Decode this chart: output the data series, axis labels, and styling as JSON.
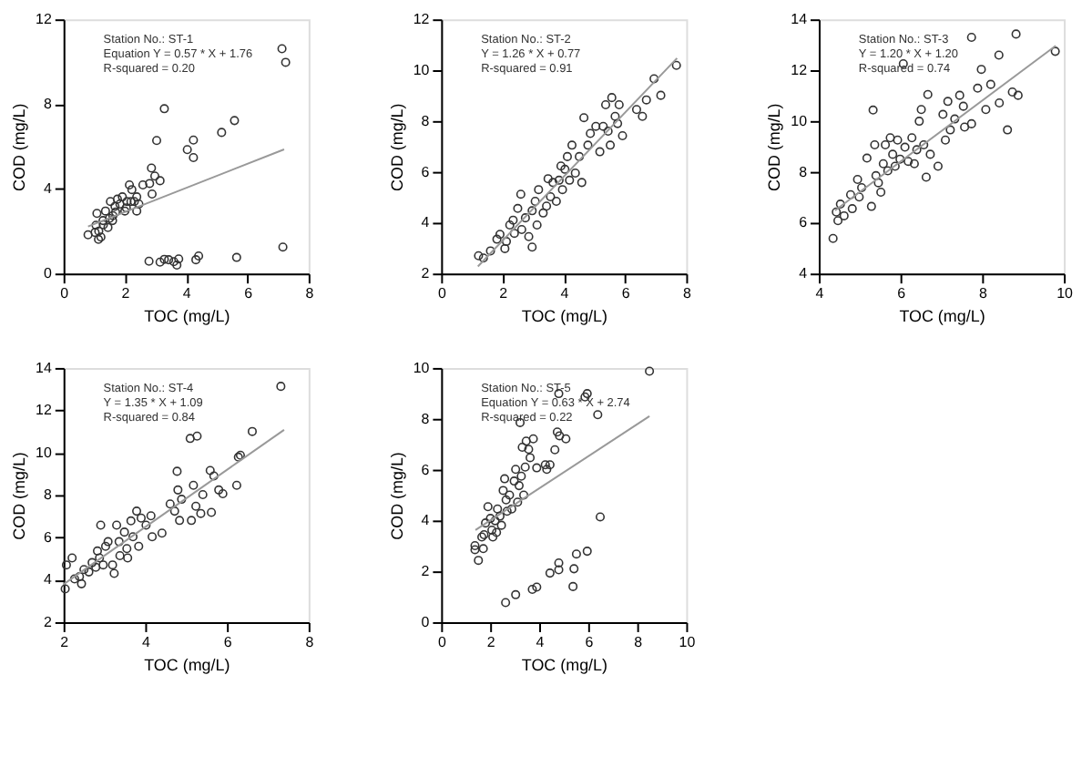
{
  "chart_data": [
    {
      "type": "scatter",
      "xlabel": "TOC (mg/L)",
      "ylabel": "COD (mg/L)",
      "xlim": [
        0,
        8
      ],
      "xticks": [
        0,
        2,
        4,
        6,
        8
      ],
      "ylim": [
        0,
        12
      ],
      "yticks": [
        0,
        4,
        8,
        12
      ],
      "grid": false,
      "annotations": [
        "Station No.: ST-1",
        "Equation Y = 0.57 * X + 1.76",
        "R-squared = 0.20"
      ],
      "series": [
        {
          "marker": "circle",
          "color": "#333333",
          "x": [
            0.8,
            1.03,
            1.06,
            1.14,
            1.22,
            1.09,
            1.29,
            1.37,
            1.45,
            1.53,
            1.61,
            1.68,
            1.76,
            1.84,
            1.92,
            2.0,
            2.07,
            2.15,
            2.23,
            2.31,
            2.39,
            2.46,
            2.39,
            2.59,
            2.81,
            2.87,
            2.89,
            2.98,
            3.04,
            3.15,
            3.29,
            2.79,
            3.15,
            3.29,
            3.43,
            3.6,
            3.7,
            3.76,
            4.04,
            4.24,
            4.24,
            4.32,
            4.41,
            5.16,
            5.58,
            5.65,
            7.13,
            7.25,
            7.16,
            1.15,
            1.3,
            1.5,
            1.7,
            2.05,
            2.2,
            1.6
          ],
          "values": [
            1.83,
            1.94,
            2.28,
            1.61,
            1.72,
            2.84,
            2.5,
            2.95,
            2.17,
            3.4,
            2.73,
            3.17,
            3.51,
            3.28,
            3.62,
            2.95,
            3.4,
            4.18,
            3.96,
            3.4,
            3.62,
            3.28,
            2.95,
            4.18,
            4.25,
            4.98,
            3.75,
            4.6,
            6.28,
            4.38,
            7.78,
            0.58,
            0.54,
            0.67,
            0.65,
            0.56,
            0.4,
            0.69,
            5.85,
            6.3,
            5.47,
            0.65,
            0.83,
            6.66,
            7.22,
            0.76,
            10.61,
            9.97,
            1.25,
            2.0,
            2.3,
            2.6,
            2.9,
            3.1,
            3.4,
            2.5
          ]
        },
        {
          "type": "line",
          "color": "#999999",
          "x": [
            0.8,
            7.2
          ],
          "values": [
            2.22,
            5.86
          ]
        }
      ]
    },
    {
      "type": "scatter",
      "xlabel": "TOC (mg/L)",
      "ylabel": "COD (mg/L)",
      "xlim": [
        0,
        8
      ],
      "xticks": [
        0,
        2,
        4,
        6,
        8
      ],
      "ylim": [
        2,
        12
      ],
      "yticks": [
        2,
        4,
        6,
        8,
        10,
        12
      ],
      "grid": false,
      "annotations": [
        "Station No.: ST-2",
        "Y = 1.26 * X + 0.77",
        "R-squared = 0.91"
      ],
      "series": [
        {
          "marker": "circle",
          "color": "#333333",
          "x": [
            1.22,
            1.38,
            1.61,
            1.82,
            1.92,
            2.08,
            2.13,
            2.24,
            2.35,
            2.39,
            2.5,
            2.6,
            2.63,
            2.75,
            2.86,
            2.97,
            2.97,
            3.07,
            3.13,
            3.18,
            3.33,
            3.44,
            3.49,
            3.57,
            3.65,
            3.76,
            3.85,
            3.91,
            3.96,
            4.04,
            4.12,
            4.19,
            4.27,
            4.38,
            4.51,
            4.59,
            4.66,
            4.79,
            4.87,
            5.05,
            5.18,
            5.29,
            5.37,
            5.45,
            5.52,
            5.57,
            5.68,
            5.76,
            5.81,
            5.92,
            6.38,
            6.57,
            6.7,
            6.95,
            7.17,
            7.68
          ],
          "values": [
            2.7,
            2.61,
            2.89,
            3.35,
            3.54,
            2.98,
            3.26,
            3.91,
            4.1,
            3.58,
            4.56,
            5.12,
            3.73,
            4.19,
            3.45,
            3.04,
            4.47,
            4.84,
            3.91,
            5.3,
            4.38,
            4.65,
            5.73,
            5.02,
            5.58,
            4.84,
            5.67,
            6.23,
            5.3,
            6.1,
            6.6,
            5.67,
            7.05,
            5.95,
            6.6,
            5.58,
            8.13,
            7.05,
            7.51,
            7.79,
            6.79,
            7.79,
            8.64,
            7.6,
            7.05,
            8.92,
            8.18,
            7.9,
            8.64,
            7.42,
            8.45,
            8.18,
            8.83,
            9.66,
            9.01,
            10.19
          ]
        },
        {
          "type": "line",
          "color": "#999999",
          "x": [
            1.2,
            7.7
          ],
          "values": [
            2.28,
            10.47
          ]
        }
      ]
    },
    {
      "type": "scatter",
      "xlabel": "TOC (mg/L)",
      "ylabel": "COD (mg/L)",
      "xlim": [
        4,
        10
      ],
      "xticks": [
        4,
        6,
        8,
        10
      ],
      "ylim": [
        4,
        14
      ],
      "yticks": [
        4,
        6,
        8,
        10,
        12,
        14
      ],
      "grid": false,
      "annotations": [
        "Station No.: ST-3",
        "Y = 1.20 * X + 1.20",
        "R-squared = 0.74"
      ],
      "series": [
        {
          "marker": "circle",
          "color": "#333333",
          "x": [
            4.35,
            4.43,
            4.47,
            4.53,
            4.62,
            4.78,
            4.82,
            4.95,
            4.99,
            5.05,
            5.18,
            5.29,
            5.33,
            5.37,
            5.4,
            5.46,
            5.52,
            5.58,
            5.63,
            5.69,
            5.75,
            5.81,
            5.87,
            5.93,
            5.99,
            6.07,
            6.11,
            6.19,
            6.28,
            6.34,
            6.4,
            6.46,
            6.51,
            6.57,
            6.63,
            6.67,
            6.73,
            6.92,
            7.04,
            7.1,
            7.16,
            7.22,
            7.33,
            7.45,
            7.54,
            7.57,
            7.74,
            7.74,
            7.89,
            7.98,
            8.09,
            8.21,
            8.41,
            8.42,
            8.62,
            8.74,
            8.83,
            8.88,
            9.79
          ],
          "values": [
            5.38,
            6.42,
            6.08,
            6.73,
            6.27,
            7.1,
            6.55,
            7.7,
            7.01,
            7.38,
            8.54,
            6.64,
            10.43,
            9.06,
            7.85,
            7.57,
            7.2,
            8.32,
            9.06,
            8.04,
            9.34,
            8.69,
            8.22,
            9.25,
            8.5,
            12.25,
            8.97,
            8.41,
            9.34,
            8.32,
            8.87,
            9.99,
            10.45,
            9.06,
            7.79,
            11.04,
            8.69,
            8.22,
            10.26,
            9.25,
            10.77,
            9.65,
            10.08,
            11.01,
            10.58,
            9.76,
            13.29,
            9.89,
            11.29,
            12.03,
            10.45,
            11.44,
            12.59,
            10.71,
            9.65,
            11.14,
            13.42,
            11.01,
            12.74
          ]
        },
        {
          "type": "line",
          "color": "#999999",
          "x": [
            4.4,
            9.8
          ],
          "values": [
            6.48,
            12.96
          ]
        }
      ]
    },
    {
      "type": "scatter",
      "xlabel": "TOC (mg/L)",
      "ylabel": "COD (mg/L)",
      "xlim": [
        2,
        8
      ],
      "xticks": [
        2,
        4,
        6,
        8
      ],
      "ylim": [
        2,
        14
      ],
      "yticks": [
        2,
        4,
        6,
        8,
        10,
        12,
        14
      ],
      "grid": false,
      "annotations": [
        "Station No.: ST-4",
        "Y = 1.35 * X + 1.09",
        "R-squared = 0.84"
      ],
      "series": [
        {
          "marker": "circle",
          "color": "#333333",
          "x": [
            2.04,
            2.07,
            2.21,
            2.27,
            2.39,
            2.44,
            2.5,
            2.62,
            2.7,
            2.79,
            2.83,
            2.88,
            2.91,
            2.97,
            3.03,
            3.09,
            3.2,
            3.24,
            3.3,
            3.36,
            3.38,
            3.49,
            3.55,
            3.57,
            3.65,
            3.7,
            3.79,
            3.84,
            3.9,
            4.02,
            4.14,
            4.17,
            4.41,
            4.61,
            4.72,
            4.78,
            4.8,
            4.84,
            4.89,
            5.1,
            5.13,
            5.18,
            5.24,
            5.27,
            5.36,
            5.41,
            5.59,
            5.62,
            5.68,
            5.8,
            5.9,
            6.24,
            6.28,
            6.33,
            6.62,
            7.32
          ],
          "values": [
            3.57,
            4.7,
            5.03,
            4.04,
            4.15,
            3.81,
            4.48,
            4.37,
            4.81,
            4.59,
            5.36,
            5.03,
            6.58,
            4.7,
            5.58,
            5.8,
            4.7,
            4.3,
            6.58,
            5.8,
            5.14,
            6.25,
            5.47,
            5.03,
            6.78,
            6.03,
            7.24,
            5.58,
            6.91,
            6.58,
            7.02,
            6.03,
            6.2,
            7.58,
            7.24,
            9.12,
            8.24,
            6.8,
            7.8,
            10.67,
            6.8,
            8.46,
            7.47,
            10.78,
            7.13,
            8.02,
            9.16,
            7.18,
            8.9,
            8.24,
            8.06,
            8.46,
            9.79,
            9.88,
            11.0,
            13.13
          ]
        },
        {
          "type": "line",
          "color": "#999999",
          "x": [
            2.0,
            7.4
          ],
          "values": [
            3.79,
            11.08
          ]
        }
      ]
    },
    {
      "type": "scatter",
      "xlabel": "TOC (mg/L)",
      "ylabel": "COD (mg/L)",
      "xlim": [
        0,
        10
      ],
      "xticks": [
        0,
        2,
        4,
        6,
        8,
        10
      ],
      "ylim": [
        0,
        10
      ],
      "yticks": [
        0,
        2,
        4,
        6,
        8,
        10
      ],
      "grid": false,
      "annotations": [
        "Station No.: ST-5",
        "Equation Y = 0.63 * X + 2.74",
        "R-squared = 0.22"
      ],
      "series": [
        {
          "marker": "circle",
          "color": "#333333",
          "x": [
            1.38,
            1.38,
            1.52,
            1.66,
            1.72,
            1.75,
            1.81,
            1.91,
            2.01,
            2.07,
            2.11,
            2.2,
            2.26,
            2.3,
            2.4,
            2.46,
            2.53,
            2.59,
            2.65,
            2.69,
            2.79,
            2.88,
            2.98,
            3.04,
            3.12,
            3.18,
            3.22,
            3.27,
            3.31,
            3.37,
            3.43,
            3.47,
            3.57,
            3.63,
            3.76,
            3.9,
            4.25,
            4.31,
            4.44,
            4.64,
            4.74,
            4.8,
            4.83,
            5.09,
            5.87,
            5.96,
            6.39,
            6.49,
            8.5,
            2.63,
            3.04,
            3.72,
            3.9,
            4.44,
            4.8,
            4.8,
            5.38,
            5.42,
            5.52,
            5.96
          ],
          "values": [
            3.01,
            2.85,
            2.43,
            3.35,
            2.89,
            3.44,
            3.9,
            4.54,
            4.08,
            3.62,
            3.35,
            3.99,
            3.53,
            4.45,
            4.17,
            3.81,
            5.18,
            5.64,
            4.81,
            4.36,
            5.0,
            4.45,
            5.55,
            6.01,
            4.72,
            5.37,
            7.85,
            5.74,
            6.88,
            5.0,
            6.1,
            7.12,
            6.8,
            6.47,
            7.21,
            6.07,
            6.19,
            6.01,
            6.19,
            6.78,
            7.48,
            8.99,
            7.33,
            7.21,
            8.86,
            8.99,
            8.16,
            4.14,
            9.87,
            0.77,
            1.08,
            1.29,
            1.38,
            1.93,
            2.33,
            2.06,
            1.4,
            2.1,
            2.68,
            2.79
          ]
        },
        {
          "type": "line",
          "color": "#999999",
          "x": [
            1.4,
            8.5
          ],
          "values": [
            3.62,
            8.1
          ]
        }
      ]
    }
  ]
}
